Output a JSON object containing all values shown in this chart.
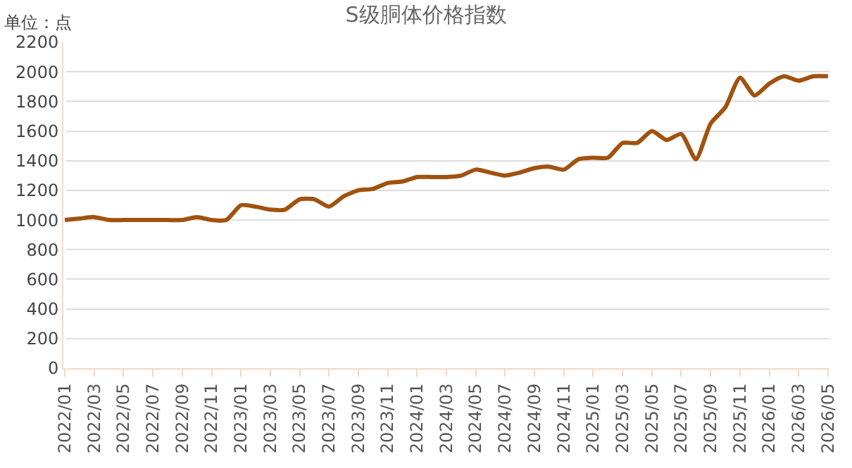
{
  "chart_data": {
    "type": "line",
    "title": "S级胴体价格指数",
    "annotations": [
      "单位：点"
    ],
    "categories": [
      "2022/01",
      null,
      "2022/03",
      null,
      "2022/05",
      null,
      "2022/07",
      null,
      "2022/09",
      null,
      "2022/11",
      null,
      "2023/01",
      null,
      "2023/03",
      null,
      "2023/05",
      null,
      "2023/07",
      null,
      "2023/09",
      null,
      "2023/11",
      null,
      "2024/01",
      null,
      "2024/03",
      null,
      "2024/05",
      null,
      "2024/07",
      null,
      "2024/09",
      null,
      "2024/11",
      null,
      "2025/01",
      null,
      "2025/03",
      null,
      "2025/05",
      null,
      "2025/07",
      null,
      "2025/09",
      null,
      "2025/11",
      null,
      "2026/01",
      null,
      "2026/03",
      null,
      "2026/05"
    ],
    "series": [
      {
        "color": "#a0520f",
        "values": [
          1000,
          1010,
          1020,
          1000,
          1000,
          1000,
          1000,
          1000,
          1000,
          1020,
          1000,
          1000,
          1100,
          1090,
          1070,
          1070,
          1140,
          1140,
          1090,
          1160,
          1200,
          1210,
          1250,
          1260,
          1290,
          1290,
          1290,
          1300,
          1340,
          1320,
          1300,
          1320,
          1350,
          1360,
          1340,
          1410,
          1420,
          1420,
          1520,
          1520,
          1600,
          1540,
          1580,
          1410,
          1650,
          1760,
          1960,
          1840,
          1920,
          1970,
          1940,
          1970,
          1970
        ]
      }
    ],
    "ylim": [
      0,
      2200
    ],
    "yticks": [
      0,
      200,
      400,
      600,
      800,
      1000,
      1200,
      1400,
      1600,
      1800,
      2000,
      2200
    ],
    "grid": "y",
    "legend": false,
    "marker": "none",
    "line_style": "solid"
  }
}
